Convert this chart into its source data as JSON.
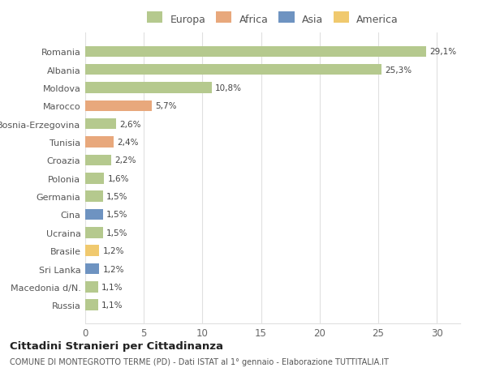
{
  "categories": [
    "Russia",
    "Macedonia d/N.",
    "Sri Lanka",
    "Brasile",
    "Ucraina",
    "Cina",
    "Germania",
    "Polonia",
    "Croazia",
    "Tunisia",
    "Bosnia-Erzegovina",
    "Marocco",
    "Moldova",
    "Albania",
    "Romania"
  ],
  "values": [
    1.1,
    1.1,
    1.2,
    1.2,
    1.5,
    1.5,
    1.5,
    1.6,
    2.2,
    2.4,
    2.6,
    5.7,
    10.8,
    25.3,
    29.1
  ],
  "continents": [
    "Europa",
    "Europa",
    "Asia",
    "America",
    "Europa",
    "Asia",
    "Europa",
    "Europa",
    "Europa",
    "Africa",
    "Europa",
    "Africa",
    "Europa",
    "Europa",
    "Europa"
  ],
  "labels": [
    "1,1%",
    "1,1%",
    "1,2%",
    "1,2%",
    "1,5%",
    "1,5%",
    "1,5%",
    "1,6%",
    "2,2%",
    "2,4%",
    "2,6%",
    "5,7%",
    "10,8%",
    "25,3%",
    "29,1%"
  ],
  "continent_colors": {
    "Europa": "#b5c98e",
    "Africa": "#e8a87c",
    "Asia": "#6e93c1",
    "America": "#f0c96e"
  },
  "background_color": "#ffffff",
  "plot_bg_color": "#ffffff",
  "grid_color": "#e0e0e0",
  "title": "Cittadini Stranieri per Cittadinanza",
  "subtitle": "COMUNE DI MONTEGROTTO TERME (PD) - Dati ISTAT al 1° gennaio - Elaborazione TUTTITALIA.IT",
  "xlim": [
    0,
    32
  ],
  "xticks": [
    0,
    5,
    10,
    15,
    20,
    25,
    30
  ],
  "legend_order": [
    "Europa",
    "Africa",
    "Asia",
    "America"
  ]
}
